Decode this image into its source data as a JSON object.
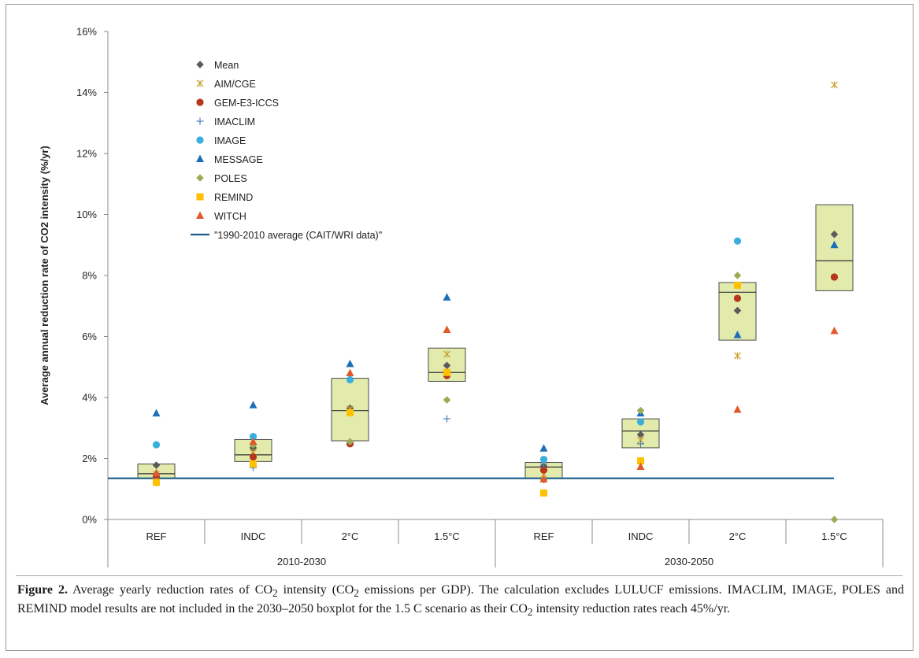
{
  "chart_data": {
    "type": "scatter",
    "ylabel": "Average annual reduction rate of CO2 intensity (%/yr)",
    "ylim": [
      0,
      16
    ],
    "yticks": [
      "0%",
      "2%",
      "4%",
      "6%",
      "8%",
      "10%",
      "12%",
      "14%",
      "16%"
    ],
    "groups": [
      {
        "label": "2010-2030",
        "categories": [
          "REF",
          "INDC",
          "2°C",
          "1.5°C"
        ]
      },
      {
        "label": "2030-2050",
        "categories": [
          "REF",
          "INDC",
          "2°C",
          "1.5°C"
        ]
      }
    ],
    "categories": [
      "REF",
      "INDC",
      "2°C",
      "1.5°C",
      "REF",
      "INDC",
      "2°C",
      "1.5°C"
    ],
    "boxes": [
      {
        "low": 1.35,
        "median": 1.5,
        "high": 1.82
      },
      {
        "low": 1.9,
        "median": 2.12,
        "high": 2.62
      },
      {
        "low": 2.58,
        "median": 3.57,
        "high": 4.63
      },
      {
        "low": 4.53,
        "median": 4.82,
        "high": 5.62
      },
      {
        "low": 1.35,
        "median": 1.72,
        "high": 1.87
      },
      {
        "low": 2.35,
        "median": 2.9,
        "high": 3.3
      },
      {
        "low": 5.88,
        "median": 7.45,
        "high": 7.77
      },
      {
        "low": 7.5,
        "median": 8.48,
        "high": 10.32
      }
    ],
    "series": [
      {
        "name": "Mean",
        "marker": "diamond",
        "color": "#5b5b5b",
        "values": [
          1.78,
          2.35,
          3.65,
          5.05,
          1.75,
          2.78,
          6.85,
          9.35
        ]
      },
      {
        "name": "AIM/CGE",
        "marker": "asterisk",
        "color": "#c8a232",
        "values": [
          1.48,
          2.2,
          3.62,
          5.42,
          1.48,
          2.6,
          5.37,
          14.25
        ]
      },
      {
        "name": "GEM-E3-ICCS",
        "marker": "circle",
        "color": "#b5371c",
        "values": [
          1.42,
          2.05,
          2.48,
          4.72,
          1.62,
          null,
          7.25,
          7.95
        ]
      },
      {
        "name": "IMACLIM",
        "marker": "plus",
        "color": "#4a7fb8",
        "values": [
          1.3,
          1.7,
          2.55,
          3.3,
          1.82,
          2.48,
          null,
          null
        ]
      },
      {
        "name": "IMAGE",
        "marker": "circle",
        "color": "#3aaedc",
        "values": [
          2.45,
          2.72,
          4.58,
          null,
          1.97,
          3.2,
          9.13,
          null
        ]
      },
      {
        "name": "MESSAGE",
        "marker": "triangle",
        "color": "#1f6fb8",
        "values": [
          3.48,
          3.75,
          5.1,
          7.28,
          2.33,
          3.48,
          6.05,
          9.0
        ]
      },
      {
        "name": "POLES",
        "marker": "diamond",
        "color": "#9aad55",
        "values": [
          1.2,
          2.45,
          2.55,
          3.92,
          1.3,
          3.57,
          8.0,
          0.0
        ]
      },
      {
        "name": "REMIND",
        "marker": "square",
        "color": "#ffc000",
        "values": [
          1.22,
          1.82,
          3.5,
          4.82,
          0.87,
          1.92,
          7.68,
          null
        ]
      },
      {
        "name": "WITCH",
        "marker": "triangle",
        "color": "#e0592a",
        "values": [
          1.52,
          2.55,
          4.8,
          6.22,
          1.32,
          1.73,
          3.6,
          6.18
        ]
      }
    ],
    "reference_line": {
      "name": "\"1990-2010 average (CAIT/WRI data)\"",
      "value": 1.35,
      "color": "#1f5c8c"
    },
    "box_fill": "#e2ebab",
    "legend_position": "top-left",
    "grid": false
  },
  "caption": {
    "figure_label": "Figure 2.",
    "text_html": " Average yearly reduction rates of CO<sub>2</sub> intensity (CO<sub>2</sub> emissions per GDP). The calculation excludes LULUCF emissions. IMACLIM, IMAGE, POLES and REMIND model results are not included in the 2030–2050 boxplot for the 1.5 C scenario as their CO<sub>2</sub> intensity reduction rates reach 45%/yr."
  }
}
